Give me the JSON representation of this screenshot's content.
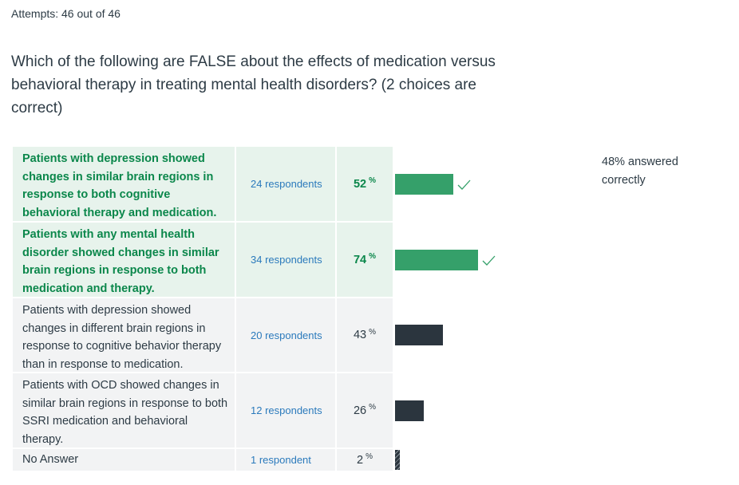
{
  "attempts_text": "Attempts: 46 out of 46",
  "question_text": "Which of the following are FALSE about the effects of medication versus behavioral therapy in treating mental health disorders? (2 choices are correct)",
  "answers": [
    {
      "text": "Patients with depression showed changes in similar brain regions in response to both cognitive behavioral therapy and medication.",
      "respondents": "24 respondents",
      "percent": "52",
      "percent_value": 52,
      "correct": true
    },
    {
      "text": "Patients with any mental health disorder showed changes in similar brain regions in response to both medication and therapy.",
      "respondents": "34 respondents",
      "percent": "74",
      "percent_value": 74,
      "correct": true
    },
    {
      "text": "Patients with depression showed changes in different brain regions in response to cognitive behavior therapy than in response to medication.",
      "respondents": "20 respondents",
      "percent": "43",
      "percent_value": 43,
      "correct": false
    },
    {
      "text": "Patients with OCD showed changes in similar brain regions in response to both SSRI medication and behavioral therapy.",
      "respondents": "12 respondents",
      "percent": "26",
      "percent_value": 26,
      "correct": false
    },
    {
      "text": "No Answer",
      "respondents": "1 respondent",
      "percent": "2",
      "percent_value": 2,
      "correct": false
    }
  ],
  "percent_symbol": "%",
  "summary_text": "48% answered correctly",
  "colors": {
    "correct": "#35a06a",
    "incorrect": "#2b353e",
    "correct_text": "#0b874b",
    "link": "#2b7abc"
  }
}
